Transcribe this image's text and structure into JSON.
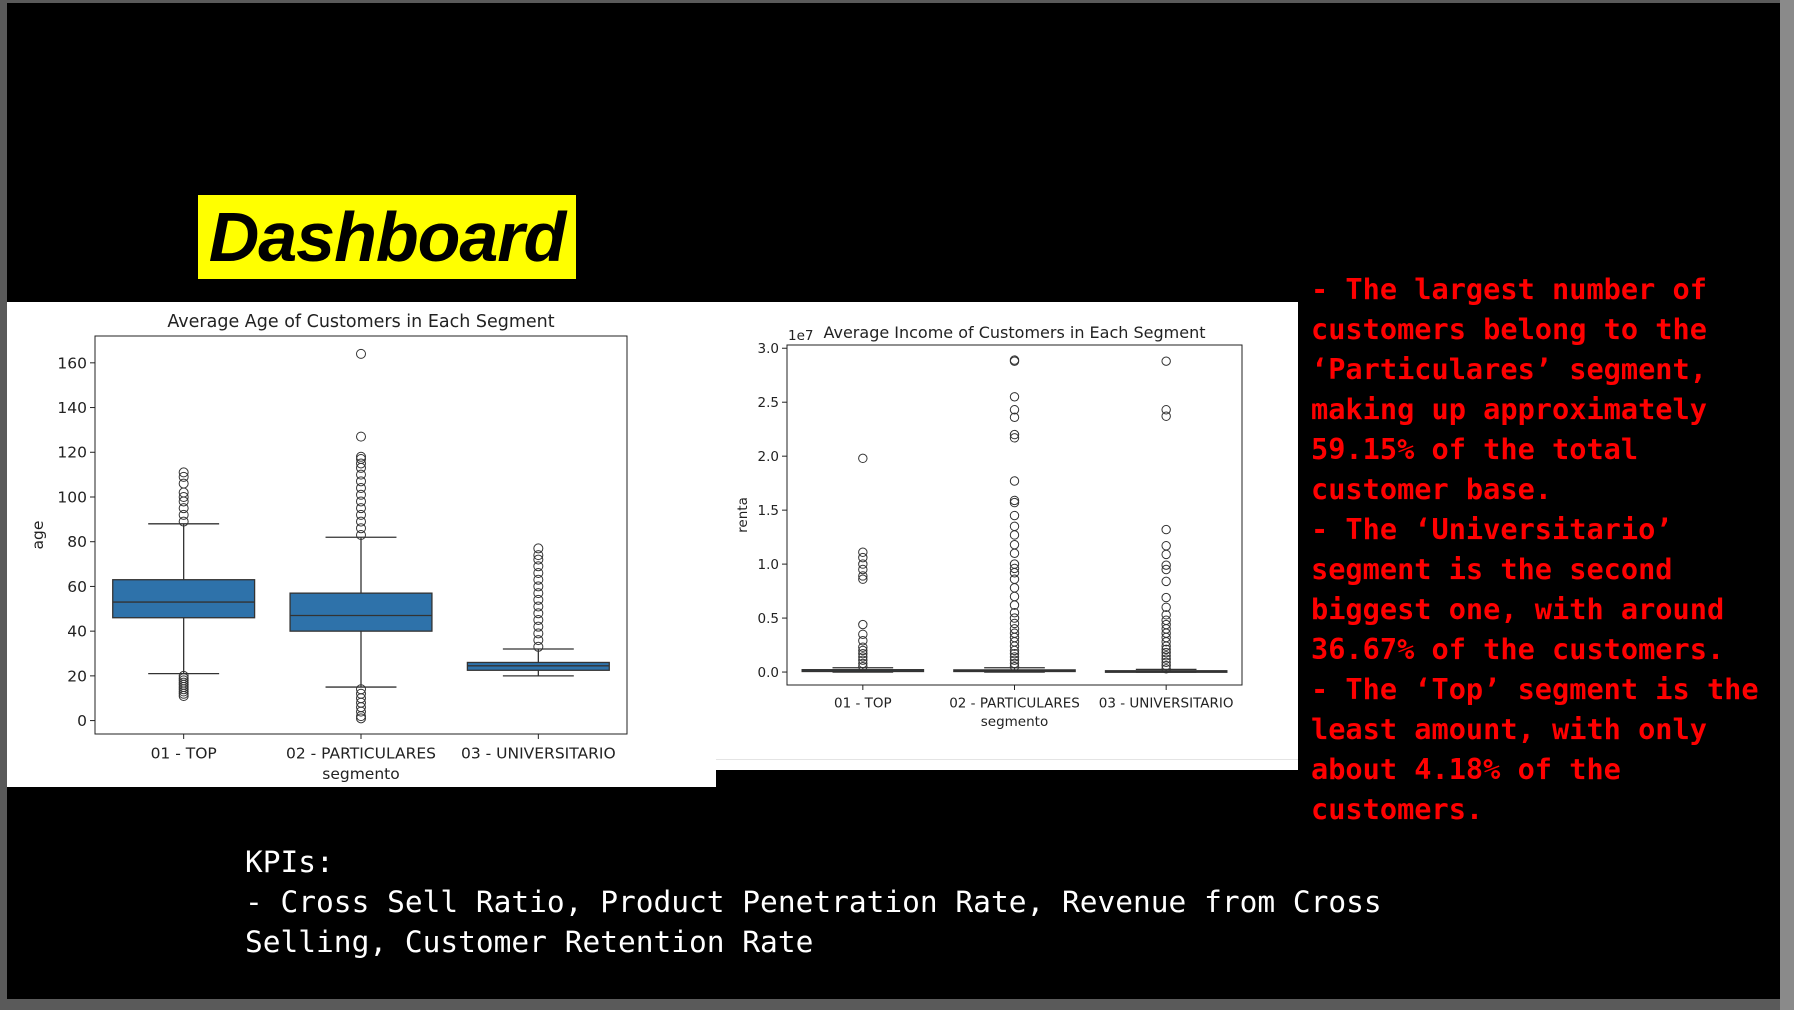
{
  "slide": {
    "title": "Dashboard",
    "insights": [
      "- The largest number of",
      "customers belong to the",
      "‘Particulares’ segment,",
      "making up approximately",
      "59.15% of the total",
      "customer base.",
      "- The ‘Universitario’",
      "segment is the second",
      "biggest one, with around",
      "36.67% of the customers.",
      "- The ‘Top’ segment is the",
      "least amount, with only",
      "about 4.18% of the",
      "customers."
    ],
    "kpis": [
      "KPIs:",
      "- Cross Sell Ratio, Product Penetration Rate, Revenue from Cross",
      "Selling, Customer Retention Rate"
    ],
    "colors": {
      "background": "#000000",
      "title_bg": "#ffff00",
      "insight_text": "#ff0000",
      "box_fill": "#2e72aa"
    }
  },
  "chart_data": [
    {
      "type": "box",
      "title": "Average Age of Customers in Each Segment",
      "xlabel": "segmento",
      "ylabel": "age",
      "ylim": [
        -6,
        172
      ],
      "yticks": [
        0,
        20,
        40,
        60,
        80,
        100,
        120,
        140,
        160
      ],
      "categories": [
        "01 - TOP",
        "02 - PARTICULARES",
        "03 - UNIVERSITARIO"
      ],
      "boxes": [
        {
          "whisker_low": 21,
          "q1": 46,
          "median": 53,
          "q3": 63,
          "whisker_high": 88,
          "outliers_low": [
            11,
            12,
            13,
            14,
            15,
            16,
            17,
            18,
            19,
            20
          ],
          "outliers_high": [
            89,
            92,
            95,
            98,
            100,
            102,
            106,
            109,
            111
          ]
        },
        {
          "whisker_low": 15,
          "q1": 40,
          "median": 47,
          "q3": 57,
          "whisker_high": 82,
          "outliers_low": [
            1,
            2,
            4,
            6,
            8,
            10,
            12,
            14
          ],
          "outliers_high": [
            83,
            86,
            89,
            92,
            95,
            98,
            101,
            104,
            107,
            110,
            113,
            115,
            117,
            118,
            127,
            164
          ]
        },
        {
          "whisker_low": 20,
          "q1": 22.5,
          "median": 24.5,
          "q3": 26,
          "whisker_high": 32,
          "outliers_low": [],
          "outliers_high": [
            33,
            36,
            39,
            42,
            45,
            48,
            51,
            54,
            57,
            60,
            63,
            66,
            69,
            72,
            74,
            77
          ]
        }
      ]
    },
    {
      "type": "box",
      "title": "Average Income of Customers in Each Segment",
      "xlabel": "segmento",
      "ylabel": "renta",
      "y_scale_label": "1e7",
      "ylim": [
        -0.12,
        3.03
      ],
      "yticks": [
        0.0,
        0.5,
        1.0,
        1.5,
        2.0,
        2.5,
        3.0
      ],
      "categories": [
        "01 - TOP",
        "02 - PARTICULARES",
        "03 - UNIVERSITARIO"
      ],
      "boxes": [
        {
          "whisker_low": 0.0,
          "q1": 0.005,
          "median": 0.012,
          "q3": 0.022,
          "whisker_high": 0.04,
          "outliers_low": [],
          "outliers_high": [
            0.05,
            0.08,
            0.11,
            0.14,
            0.17,
            0.2,
            0.23,
            0.29,
            0.35,
            0.44,
            0.86,
            0.89,
            0.95,
            1.0,
            1.06,
            1.11,
            1.98
          ]
        },
        {
          "whisker_low": 0.0,
          "q1": 0.005,
          "median": 0.01,
          "q3": 0.02,
          "whisker_high": 0.04,
          "outliers_low": [],
          "outliers_high": [
            0.05,
            0.08,
            0.11,
            0.14,
            0.17,
            0.2,
            0.24,
            0.28,
            0.32,
            0.36,
            0.4,
            0.45,
            0.5,
            0.55,
            0.62,
            0.7,
            0.78,
            0.86,
            0.92,
            0.96,
            1.0,
            1.1,
            1.18,
            1.27,
            1.35,
            1.45,
            1.57,
            1.59,
            1.77,
            2.17,
            2.2,
            2.36,
            2.43,
            2.55,
            2.88,
            2.89
          ]
        },
        {
          "whisker_low": 0.0,
          "q1": 0.003,
          "median": 0.006,
          "q3": 0.012,
          "whisker_high": 0.025,
          "outliers_low": [],
          "outliers_high": [
            0.03,
            0.06,
            0.09,
            0.12,
            0.15,
            0.18,
            0.21,
            0.24,
            0.28,
            0.32,
            0.36,
            0.4,
            0.44,
            0.48,
            0.53,
            0.6,
            0.69,
            0.84,
            0.95,
            0.99,
            1.09,
            1.17,
            1.32,
            2.37,
            2.43,
            2.88
          ]
        }
      ]
    }
  ]
}
